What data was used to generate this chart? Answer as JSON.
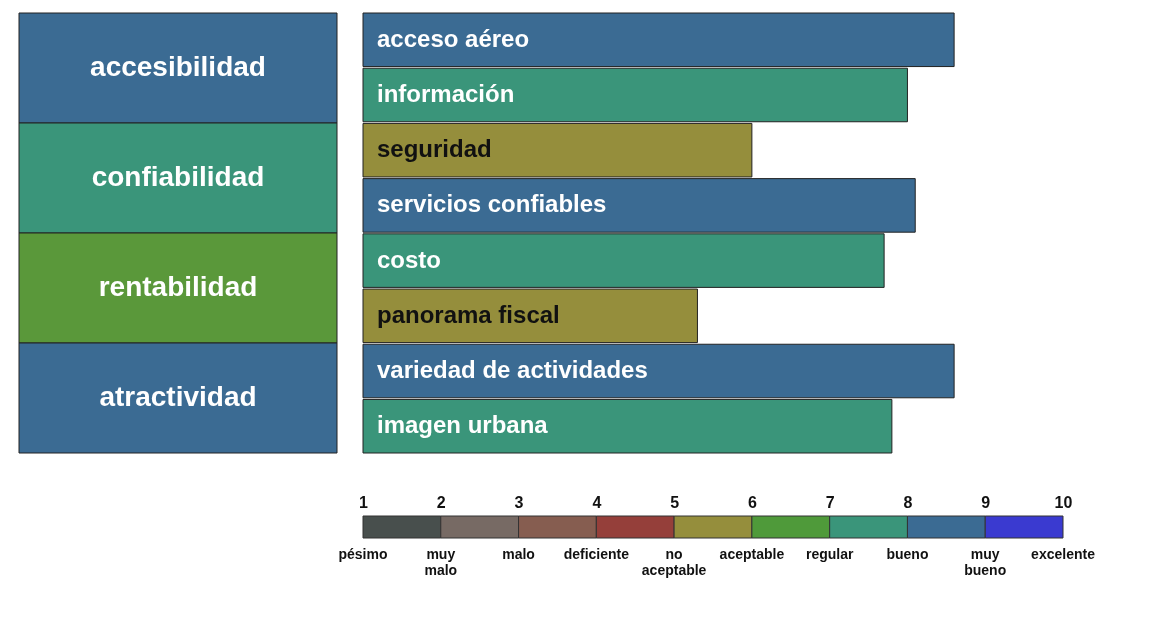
{
  "chart_data": {
    "type": "bar",
    "orientation": "horizontal",
    "categories": [
      "acceso aéreo",
      "información",
      "seguridad",
      "servicios confiables",
      "costo",
      "panorama fiscal",
      "variedad de actividades",
      "imagen urbana"
    ],
    "values": [
      8.6,
      8.0,
      6.0,
      8.1,
      7.7,
      5.3,
      8.6,
      7.8
    ],
    "colors": [
      "#3b6b93",
      "#3a957a",
      "#958e3c",
      "#3b6b93",
      "#3a957a",
      "#958e3c",
      "#3b6b93",
      "#3a957a"
    ],
    "xlim": [
      1,
      10
    ],
    "xticks": [
      1,
      2,
      3,
      4,
      5,
      6,
      7,
      8,
      9,
      10
    ],
    "grid": false,
    "annotations": [
      "accesibilidad",
      "confiabilidad",
      "rentabilidad",
      "atractividad",
      "pésimo",
      "muy malo",
      "malo",
      "deficiente",
      "no aceptable",
      "aceptable",
      "regular",
      "bueno",
      "muy bueno",
      "excelente"
    ]
  }
}
